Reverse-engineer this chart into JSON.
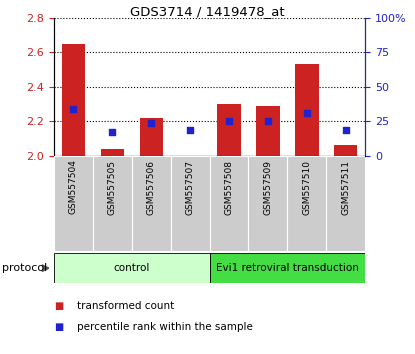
{
  "title": "GDS3714 / 1419478_at",
  "samples": [
    "GSM557504",
    "GSM557505",
    "GSM557506",
    "GSM557507",
    "GSM557508",
    "GSM557509",
    "GSM557510",
    "GSM557511"
  ],
  "transformed_counts": [
    2.65,
    2.04,
    2.22,
    2.0,
    2.3,
    2.29,
    2.53,
    2.06
  ],
  "percentile_values": [
    2.27,
    2.14,
    2.19,
    2.15,
    2.2,
    2.2,
    2.25,
    2.15
  ],
  "ylim_left": [
    2.0,
    2.8
  ],
  "ylim_right": [
    0,
    100
  ],
  "yticks_left": [
    2.0,
    2.2,
    2.4,
    2.6,
    2.8
  ],
  "yticks_right": [
    0,
    25,
    50,
    75,
    100
  ],
  "ytick_labels_right": [
    "0",
    "25",
    "50",
    "75",
    "100%"
  ],
  "bar_color": "#cc2222",
  "dot_color": "#2222cc",
  "bar_bottom": 2.0,
  "bar_width": 0.6,
  "protocol_groups": [
    {
      "label": "control",
      "start": 0,
      "end": 3,
      "color": "#ccffcc"
    },
    {
      "label": "Evi1 retroviral transduction",
      "start": 4,
      "end": 7,
      "color": "#44dd44"
    }
  ],
  "protocol_label": "protocol",
  "grid_color": "black",
  "background_plot": "white",
  "background_xtick": "#cccccc",
  "left_color": "#cc2222",
  "right_color": "#2222cc"
}
